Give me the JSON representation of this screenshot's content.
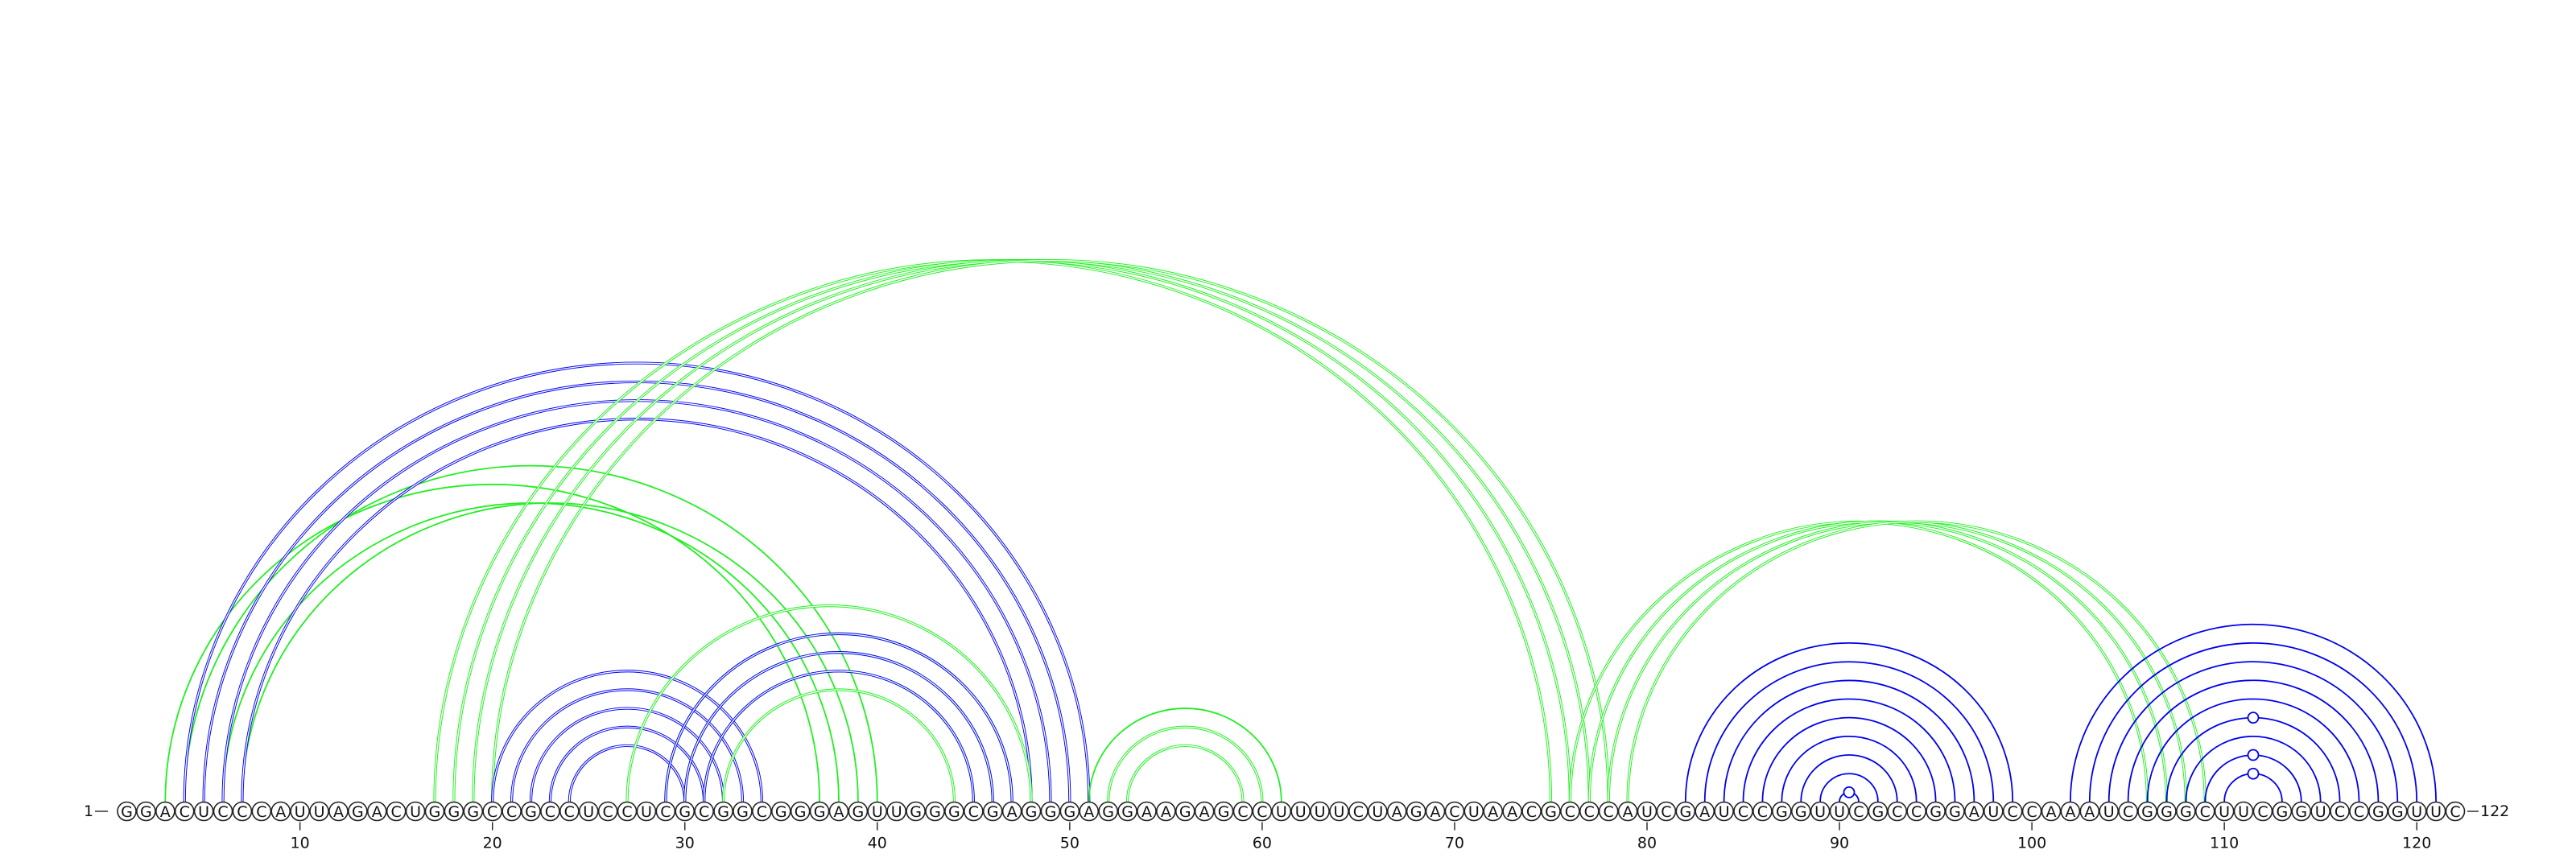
{
  "diagram": {
    "type": "rna-arc-diagram",
    "sequence": "GGACUCCCAUUAGACUGGGCCGCCUCCUCGCGGCGGGAGUUGGGCGAGGGAGGAAGAGCCUUUUCUAGACUAACGCCCAUCGAUCCGGUUCGCCGGAUCCAAAUCGGGCUUCGGUCCGGUUC",
    "start_label": "1",
    "end_label": "122",
    "tick_labels": [
      10,
      20,
      30,
      40,
      50,
      60,
      70,
      80,
      90,
      100,
      110,
      120
    ],
    "colors": {
      "blue": "#0000ee",
      "green": "#22ee22",
      "circle_stroke": "#222222",
      "text": "#111111"
    },
    "arc_groups": [
      {
        "color": "green",
        "style": "single",
        "pairs": [
          [
            3,
            37
          ],
          [
            6,
            38
          ],
          [
            7,
            39
          ],
          [
            4,
            40
          ]
        ]
      },
      {
        "color": "blue",
        "style": "double",
        "pairs": [
          [
            4,
            51
          ],
          [
            5,
            50
          ],
          [
            6,
            49
          ],
          [
            7,
            48
          ]
        ]
      },
      {
        "color": "green",
        "style": "double",
        "pairs": [
          [
            17,
            75
          ],
          [
            18,
            76
          ],
          [
            19,
            77
          ],
          [
            20,
            78
          ]
        ]
      },
      {
        "color": "blue",
        "style": "double",
        "pairs": [
          [
            20,
            34
          ],
          [
            21,
            33
          ],
          [
            22,
            32
          ],
          [
            23,
            31
          ],
          [
            24,
            30
          ]
        ]
      },
      {
        "color": "green",
        "style": "double",
        "pairs": [
          [
            27,
            48
          ],
          [
            29,
            47
          ],
          [
            30,
            46
          ],
          [
            31,
            45
          ],
          [
            32,
            44
          ]
        ]
      },
      {
        "color": "blue",
        "style": "double",
        "pairs": [
          [
            29,
            47
          ],
          [
            30,
            46
          ],
          [
            31,
            45
          ]
        ]
      },
      {
        "color": "green",
        "style": "double",
        "pairs": [
          [
            52,
            60
          ],
          [
            53,
            59
          ]
        ]
      },
      {
        "color": "green",
        "style": "single",
        "pairs": [
          [
            51,
            61
          ]
        ]
      },
      {
        "color": "green",
        "style": "double",
        "pairs": [
          [
            76,
            106
          ],
          [
            77,
            107
          ],
          [
            78,
            108
          ],
          [
            79,
            109
          ]
        ]
      },
      {
        "color": "blue",
        "style": "single",
        "pairs": [
          [
            82,
            99
          ],
          [
            83,
            98
          ],
          [
            84,
            97
          ],
          [
            85,
            96
          ],
          [
            86,
            95
          ],
          [
            87,
            94
          ],
          [
            88,
            93
          ],
          [
            89,
            92
          ],
          [
            90,
            91
          ]
        ]
      },
      {
        "color": "blue",
        "style": "single",
        "pairs": [
          [
            102,
            121
          ],
          [
            103,
            120
          ],
          [
            104,
            119
          ],
          [
            105,
            118
          ],
          [
            106,
            117
          ],
          [
            107,
            116
          ],
          [
            108,
            115
          ],
          [
            109,
            114
          ],
          [
            110,
            113
          ]
        ]
      }
    ],
    "arc_markers": [
      {
        "color": "blue",
        "pair": [
          90,
          91
        ]
      },
      {
        "color": "blue",
        "pair": [
          110,
          113
        ]
      },
      {
        "color": "blue",
        "pair": [
          109,
          114
        ]
      },
      {
        "color": "blue",
        "pair": [
          107,
          116
        ]
      }
    ]
  }
}
